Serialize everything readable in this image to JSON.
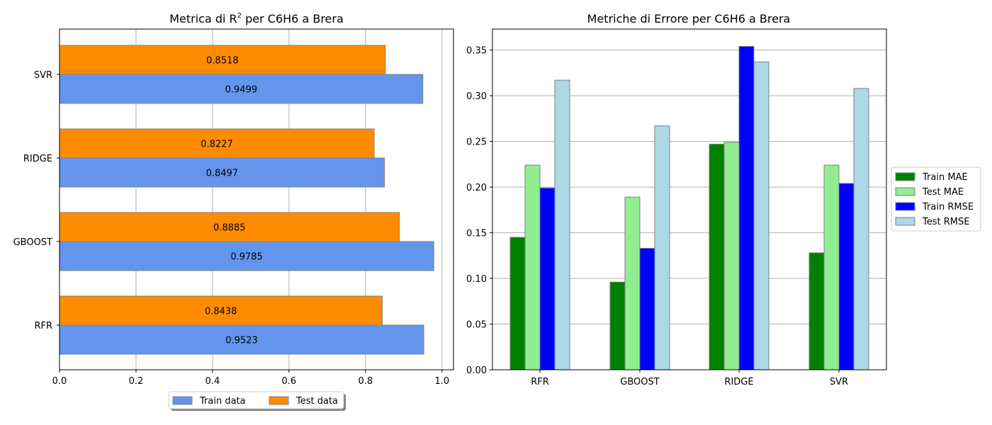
{
  "chart_data": [
    {
      "type": "bar",
      "orientation": "horizontal",
      "title": "Metrica di R",
      "title_superscript": "2",
      "title_suffix": " per C6H6 a Brera",
      "categories": [
        "RFR",
        "GBOOST",
        "RIDGE",
        "SVR"
      ],
      "series": [
        {
          "name": "Train data",
          "values": [
            0.9523,
            0.9785,
            0.8497,
            0.9499
          ],
          "color": "#6495ED"
        },
        {
          "name": "Test data",
          "values": [
            0.8438,
            0.8885,
            0.8227,
            0.8518
          ],
          "color": "#FF8C00"
        }
      ],
      "value_labels": {
        "train": [
          "0.9523",
          "0.9785",
          "0.8497",
          "0.9499"
        ],
        "test": [
          "0.8438",
          "0.8885",
          "0.8227",
          "0.8518"
        ]
      },
      "xlim": [
        0,
        1.03
      ],
      "xticks": [
        0.0,
        0.2,
        0.4,
        0.6,
        0.8,
        1.0
      ],
      "xtick_labels": [
        "0.0",
        "0.2",
        "0.4",
        "0.6",
        "0.8",
        "1.0"
      ],
      "grid": "x",
      "legend": "bottom-center"
    },
    {
      "type": "bar",
      "orientation": "vertical",
      "title": "Metriche di Errore per C6H6 a Brera",
      "categories": [
        "RFR",
        "GBOOST",
        "RIDGE",
        "SVR"
      ],
      "series": [
        {
          "name": "Train MAE",
          "values": [
            0.145,
            0.096,
            0.247,
            0.128
          ],
          "color": "#008000"
        },
        {
          "name": "Test MAE",
          "values": [
            0.224,
            0.189,
            0.249,
            0.224
          ],
          "color": "#90EE90"
        },
        {
          "name": "Train RMSE",
          "values": [
            0.199,
            0.133,
            0.354,
            0.204
          ],
          "color": "#0000FF"
        },
        {
          "name": "Test RMSE",
          "values": [
            0.317,
            0.267,
            0.337,
            0.308
          ],
          "color": "#ADD8E6"
        }
      ],
      "ylim": [
        0,
        0.373
      ],
      "yticks": [
        0.0,
        0.05,
        0.1,
        0.15,
        0.2,
        0.25,
        0.3,
        0.35
      ],
      "ytick_labels": [
        "0.00",
        "0.05",
        "0.10",
        "0.15",
        "0.20",
        "0.25",
        "0.30",
        "0.35"
      ],
      "grid": "y",
      "legend": "center-right"
    }
  ]
}
